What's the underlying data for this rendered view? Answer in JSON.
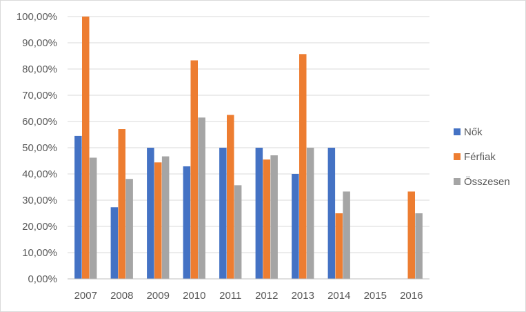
{
  "chart_data": {
    "type": "bar",
    "categories": [
      "2007",
      "2008",
      "2009",
      "2010",
      "2011",
      "2012",
      "2013",
      "2014",
      "2015",
      "2016"
    ],
    "series": [
      {
        "name": "Nők",
        "color": "#4472c4",
        "values": [
          54.5,
          27.3,
          50.0,
          42.9,
          50.0,
          50.0,
          40.0,
          50.0,
          null,
          null
        ]
      },
      {
        "name": "Férfiak",
        "color": "#ed7d31",
        "values": [
          100.0,
          57.1,
          44.4,
          83.3,
          62.5,
          45.5,
          85.7,
          25.0,
          null,
          33.3
        ]
      },
      {
        "name": "Összesen",
        "color": "#a5a5a5",
        "values": [
          46.2,
          38.1,
          46.7,
          61.5,
          35.7,
          47.1,
          50.0,
          33.3,
          null,
          25.0
        ]
      }
    ],
    "y_ticks": [
      "0,00%",
      "10,00%",
      "20,00%",
      "30,00%",
      "40,00%",
      "50,00%",
      "60,00%",
      "70,00%",
      "80,00%",
      "90,00%",
      "100,00%"
    ],
    "ylim": [
      0,
      100
    ],
    "grid": true,
    "legend_position": "right"
  }
}
